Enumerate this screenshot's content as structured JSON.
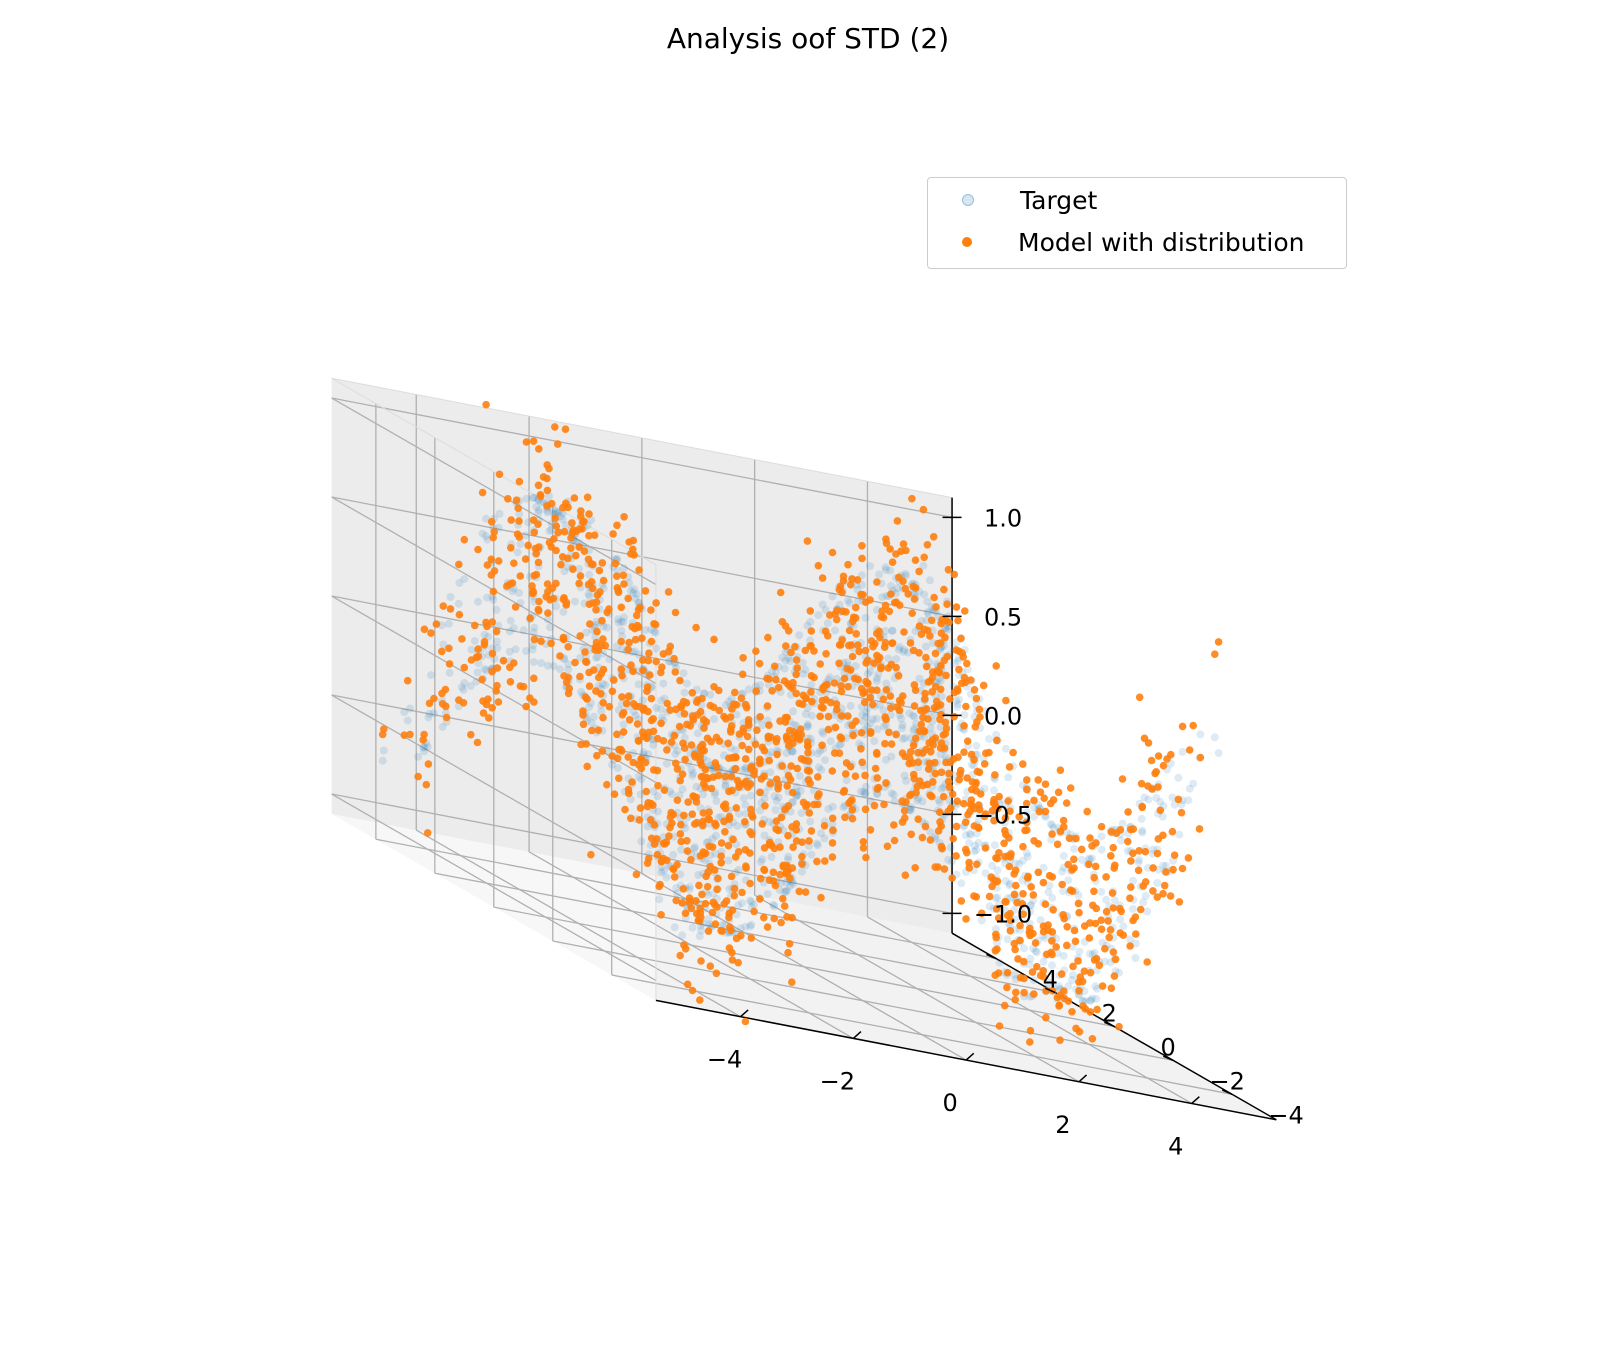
{
  "chart_data": {
    "type": "scatter",
    "projection": "3d",
    "title": "Analysis oof STD (2)",
    "xlabel": "",
    "ylabel": "",
    "zlabel": "",
    "xlim": [
      -5.5,
      5.5
    ],
    "ylim": [
      -5.5,
      5.5
    ],
    "zlim": [
      -1.1,
      1.1
    ],
    "x_ticks": [
      -4,
      -2,
      0,
      2,
      4
    ],
    "y_ticks": [
      -4,
      -2,
      0,
      2,
      4
    ],
    "z_ticks": [
      -1.0,
      -0.5,
      0.0,
      0.5,
      1.0
    ],
    "x_tick_labels": [
      "−4",
      "−2",
      "0",
      "2",
      "4"
    ],
    "y_tick_labels": [
      "−4",
      "−2",
      "0",
      "2",
      "4"
    ],
    "z_tick_labels": [
      "−1.0",
      "−0.5",
      "0.0",
      "0.5",
      "1.0"
    ],
    "grid": true,
    "legend_position": "top-right",
    "function": "z = sin(x) * cos(y / 2)",
    "sample_count": 1500,
    "series": [
      {
        "name": "Target",
        "color": "#1f77b4",
        "alpha": 0.15,
        "noise_std": 0.0
      },
      {
        "name": "Model with distribution",
        "color": "#ff7f0e",
        "alpha": 0.9,
        "noise_std": 0.2
      }
    ]
  }
}
